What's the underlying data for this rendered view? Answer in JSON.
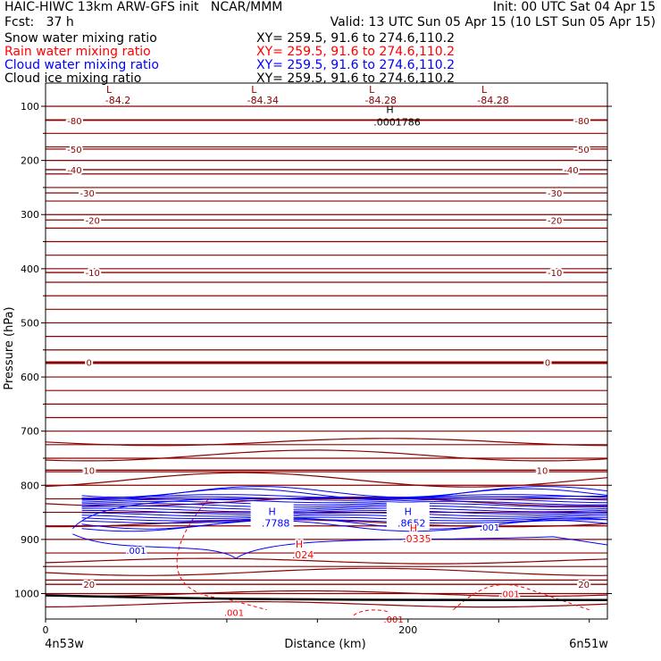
{
  "header": {
    "title_left": "HAIC-HIWC 13km ARW-GFS init   NCAR/MMM",
    "fcst": "Fcst:   37 h",
    "init": "Init: 00 UTC Sat 04 Apr 15",
    "valid": "Valid: 13 UTC Sun 05 Apr 15 (10 LST Sun 05 Apr 15)"
  },
  "fields": [
    {
      "name": "Snow water mixing ratio",
      "xy": "XY= 259.5, 91.6 to 274.6,110.2",
      "color": "#000000"
    },
    {
      "name": "Rain water mixing ratio",
      "xy": "XY= 259.5, 91.6 to 274.6,110.2",
      "color": "#ff0000"
    },
    {
      "name": "Cloud water mixing ratio",
      "xy": "XY= 259.5, 91.6 to 274.6,110.2",
      "color": "#0000ff"
    },
    {
      "name": "Cloud ice mixing ratio",
      "xy": "XY= 259.5, 91.6 to 274.6,110.2",
      "color": "#000000"
    }
  ],
  "colors": {
    "temperature": "#8b0000",
    "rain": "#ff0000",
    "cloud_water": "#0000ff",
    "axis": "#000000"
  },
  "chart_data": {
    "type": "contour cross-section",
    "ylabel": "Pressure (hPa)",
    "xlabel": "Distance (km)",
    "x_end_labels": [
      "4n53w",
      "6n51w"
    ],
    "xlim": [
      0,
      310
    ],
    "ylim": [
      1050,
      50
    ],
    "y_ticks": [
      100,
      200,
      300,
      400,
      500,
      600,
      700,
      800,
      900,
      1000
    ],
    "x_ticks": [
      0,
      200
    ],
    "isotherms": [
      {
        "label": "-80",
        "p": 126,
        "label_x": [
          16,
          296
        ]
      },
      {
        "label": "-50",
        "p": 179,
        "label_x": [
          16,
          296
        ]
      },
      {
        "label": "-40",
        "p": 217,
        "label_x": [
          16,
          290
        ]
      },
      {
        "label": "-30",
        "p": 260,
        "label_x": [
          23,
          281
        ]
      },
      {
        "label": "-20",
        "p": 310,
        "label_x": [
          26,
          281
        ]
      },
      {
        "label": "-10",
        "p": 407,
        "label_x": [
          26,
          281
        ]
      },
      {
        "label": "0",
        "p": 573,
        "label_x": [
          24,
          277
        ]
      },
      {
        "label": "10",
        "p": 772,
        "label_x": [
          24,
          274
        ]
      },
      {
        "label": "20",
        "p": 983,
        "label_x": [
          24,
          297
        ]
      }
    ],
    "extremes": [
      {
        "kind": "L",
        "value": "-84.2",
        "x": 35
      },
      {
        "kind": "L",
        "value": "-84.34",
        "x": 115
      },
      {
        "kind": "L",
        "value": "-84.28",
        "x": 180
      },
      {
        "kind": "L",
        "value": "-84.28",
        "x": 242
      }
    ],
    "ice_max": {
      "kind": "H",
      "value": ".0001786",
      "x": 190,
      "p": 112
    },
    "cloud_water_max": [
      {
        "kind": "H",
        "value": ".7788",
        "x": 125,
        "p": 855
      },
      {
        "kind": "H",
        "value": ".8652",
        "x": 200,
        "p": 855
      }
    ],
    "rain_max": [
      {
        "kind": "H",
        "value": ".024",
        "x": 140,
        "p": 915
      },
      {
        "kind": "H",
        "value": ".0335",
        "x": 203,
        "p": 885
      }
    ],
    "contour_labels": [
      {
        "value": ".001",
        "x": 50,
        "p": 920,
        "field": "cloud_water"
      },
      {
        "value": ".001",
        "x": 245,
        "p": 877,
        "field": "cloud_water"
      },
      {
        "value": ".001",
        "x": 104,
        "p": 1035,
        "field": "rain"
      },
      {
        "value": ".001",
        "x": 192,
        "p": 1047,
        "field": "rain"
      },
      {
        "value": ".001",
        "x": 256,
        "p": 1000,
        "field": "rain"
      }
    ]
  }
}
